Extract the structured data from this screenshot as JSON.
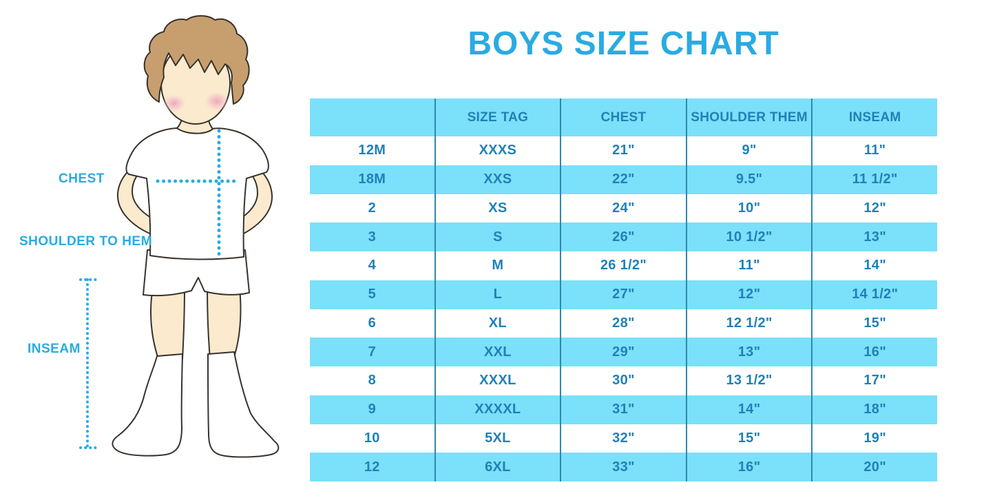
{
  "title": "BOYS SIZE CHART",
  "figure": {
    "chest_label": "CHEST",
    "shoulder_to_hem_label": "SHOULDER TO HEM",
    "inseam_label": "INSEAM"
  },
  "chart_data": {
    "type": "table",
    "title": "BOYS SIZE CHART",
    "columns": [
      "",
      "SIZE TAG",
      "CHEST",
      "SHOULDER THEM",
      "INSEAM"
    ],
    "rows": [
      [
        "12M",
        "XXXS",
        "21\"",
        "9\"",
        "11\""
      ],
      [
        "18M",
        "XXS",
        "22\"",
        "9.5\"",
        "11 1/2\""
      ],
      [
        "2",
        "XS",
        "24\"",
        "10\"",
        "12\""
      ],
      [
        "3",
        "S",
        "26\"",
        "10 1/2\"",
        "13\""
      ],
      [
        "4",
        "M",
        "26 1/2\"",
        "11\"",
        "14\""
      ],
      [
        "5",
        "L",
        "27\"",
        "12\"",
        "14 1/2\""
      ],
      [
        "6",
        "XL",
        "28\"",
        "12 1/2\"",
        "15\""
      ],
      [
        "7",
        "XXL",
        "29\"",
        "13\"",
        "16\""
      ],
      [
        "8",
        "XXXL",
        "30\"",
        "13 1/2\"",
        "17\""
      ],
      [
        "9",
        "XXXXL",
        "31\"",
        "14\"",
        "18\""
      ],
      [
        "10",
        "5XL",
        "32\"",
        "15\"",
        "19\""
      ],
      [
        "12",
        "6XL",
        "33\"",
        "16\"",
        "20\""
      ]
    ],
    "layout": {
      "striping": "rows alternate white and light cyan, first data row white",
      "grid": "four vertical dividers only, no outer border, no horizontal lines",
      "legend_position": "none"
    },
    "colors": {
      "accent_blue": "#29ABE2",
      "row_fill_cyan": "#7BE0F9",
      "table_text_blue": "#1F81B7",
      "divider_blue": "#2C89AE"
    }
  }
}
